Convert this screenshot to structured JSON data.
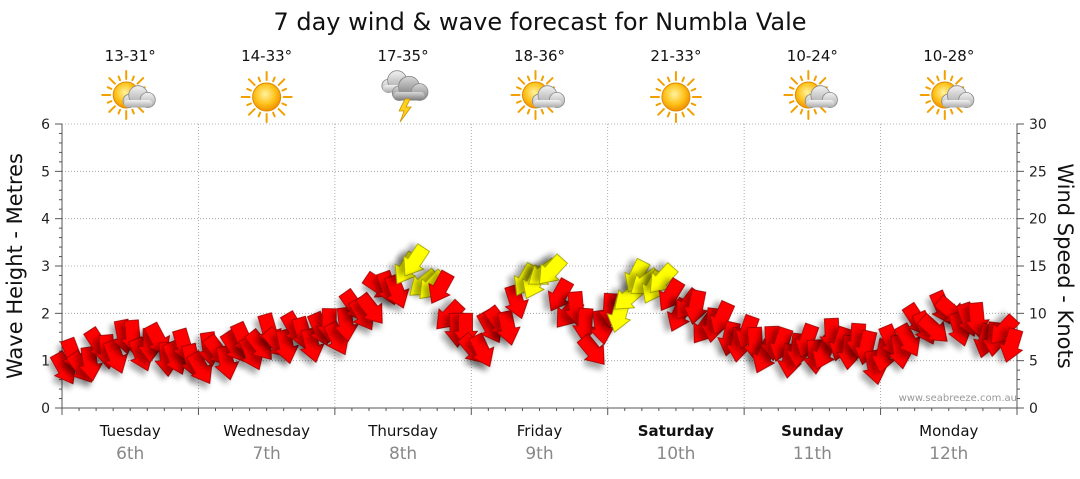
{
  "chart_data": {
    "type": "scatter",
    "title": "7 day wind & wave forecast for Numbla Vale",
    "ylabel": "Wave Height - Metres",
    "y2label": "Wind Speed - Knots",
    "ylim": [
      0,
      6
    ],
    "y2lim": [
      0,
      30
    ],
    "yticks": [
      "0",
      "1",
      "2",
      "3",
      "4",
      "5",
      "6"
    ],
    "y2ticks": [
      "0",
      "5",
      "10",
      "15",
      "20",
      "25",
      "30"
    ],
    "grid": true,
    "watermark": "www.seabreeze.com.au",
    "days": [
      {
        "day": "Tuesday",
        "date": "6th",
        "temp": "13-31°",
        "icon": "partly-cloudy-sun-icon",
        "bold": false
      },
      {
        "day": "Wednesday",
        "date": "7th",
        "temp": "14-33°",
        "icon": "sun-icon",
        "bold": false
      },
      {
        "day": "Thursday",
        "date": "8th",
        "temp": "17-35°",
        "icon": "thunderstorm-icon",
        "bold": false
      },
      {
        "day": "Friday",
        "date": "9th",
        "temp": "18-36°",
        "icon": "partly-cloudy-sun-icon",
        "bold": false
      },
      {
        "day": "Saturday",
        "date": "10th",
        "temp": "21-33°",
        "icon": "sun-icon",
        "bold": true
      },
      {
        "day": "Sunday",
        "date": "11th",
        "temp": "10-24°",
        "icon": "partly-cloudy-sun-icon",
        "bold": true
      },
      {
        "day": "Monday",
        "date": "12th",
        "temp": "10-28°",
        "icon": "partly-cloudy-sun-icon",
        "bold": false
      }
    ],
    "colors": {
      "strong_wind": "#ff0000",
      "strong_wind_edge": "#990000",
      "light_wind": "#ffff00",
      "light_wind_edge": "#999900",
      "grid": "#999999",
      "axis": "#555555",
      "date": "#888888"
    },
    "wind_series": {
      "name": "Wind",
      "t_days": [
        0.0,
        0.5,
        1.0,
        1.5,
        2.0,
        2.35,
        2.6,
        2.85,
        3.0,
        3.25,
        3.5,
        3.7,
        3.9,
        4.15,
        4.3,
        4.5,
        4.75,
        5.0,
        5.25,
        5.5,
        5.75,
        6.0,
        6.25,
        6.5,
        6.9
      ],
      "wind_knots": [
        4,
        7,
        5,
        7,
        8,
        12,
        15,
        10,
        6,
        9,
        15,
        11,
        7,
        12,
        14,
        11,
        9,
        7,
        6,
        6,
        7,
        5,
        8,
        10,
        7
      ],
      "direction_deg": [
        60,
        80,
        70,
        60,
        80,
        40,
        140,
        120,
        60,
        60,
        140,
        120,
        60,
        130,
        130,
        120,
        110,
        100,
        100,
        100,
        100,
        90,
        60,
        50,
        120
      ],
      "category": [
        "strong",
        "strong",
        "strong",
        "strong",
        "strong",
        "strong",
        "light",
        "strong",
        "strong",
        "strong",
        "light",
        "strong",
        "strong",
        "light",
        "light",
        "strong",
        "strong",
        "strong",
        "strong",
        "strong",
        "strong",
        "strong",
        "strong",
        "strong",
        "strong"
      ]
    }
  }
}
